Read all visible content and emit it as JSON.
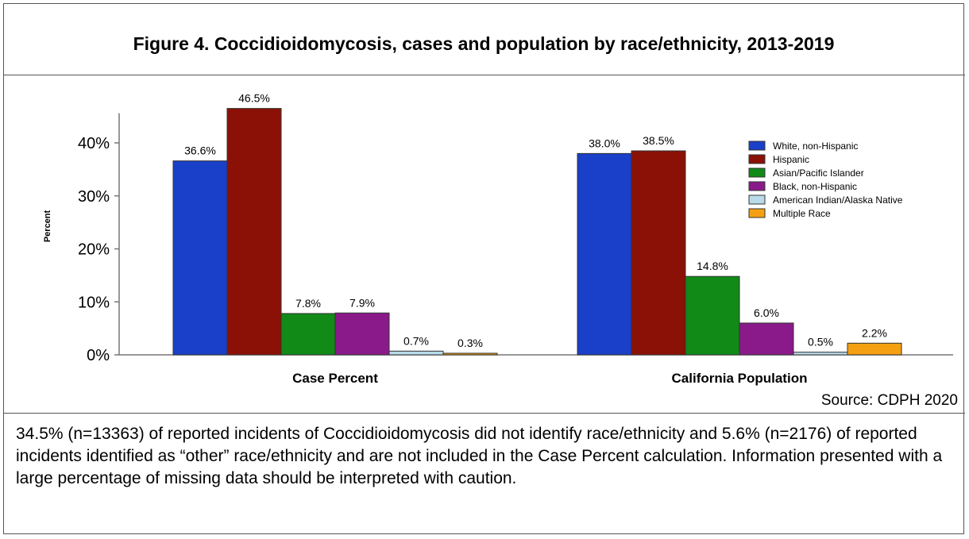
{
  "figure": {
    "title": "Figure 4. Coccidioidomycosis, cases and population by race/ethnicity, 2013-2019",
    "source": "Source: CDPH 2020",
    "footnote": "34.5% (n=13363) of reported incidents of Coccidioidomycosis did not identify race/ethnicity and 5.6% (n=2176) of reported incidents identified as “other” race/ethnicity and are not included in the Case Percent calculation. Information presented with a large percentage of missing data should be interpreted with caution."
  },
  "chart_data": {
    "type": "bar",
    "ylabel": "Percent",
    "ylim": [
      0,
      45
    ],
    "yticks": [
      "0%",
      "10%",
      "20%",
      "30%",
      "40%"
    ],
    "ytick_values": [
      0,
      10,
      20,
      30,
      40
    ],
    "categories": [
      "Case Percent",
      "California Population"
    ],
    "legend_position": "top-right",
    "series": [
      {
        "name": "White, non-Hispanic",
        "color": "#1a3fc8",
        "values": [
          36.6,
          38.0
        ],
        "labels": [
          "36.6%",
          "38.0%"
        ]
      },
      {
        "name": "Hispanic",
        "color": "#8b1106",
        "values": [
          46.5,
          38.5
        ],
        "labels": [
          "46.5%",
          "38.5%"
        ]
      },
      {
        "name": "Asian/Pacific Islander",
        "color": "#128a18",
        "values": [
          7.8,
          14.8
        ],
        "labels": [
          "7.8%",
          "14.8%"
        ]
      },
      {
        "name": "Black, non-Hispanic",
        "color": "#8a1a8a",
        "values": [
          7.9,
          6.0
        ],
        "labels": [
          "7.9%",
          "6.0%"
        ]
      },
      {
        "name": "American Indian/Alaska Native",
        "color": "#b9dbe9",
        "values": [
          0.7,
          0.5
        ],
        "labels": [
          "0.7%",
          "0.5%"
        ]
      },
      {
        "name": "Multiple Race",
        "color": "#f5a011",
        "values": [
          0.3,
          2.2
        ],
        "labels": [
          "0.3%",
          "2.2%"
        ]
      }
    ]
  }
}
